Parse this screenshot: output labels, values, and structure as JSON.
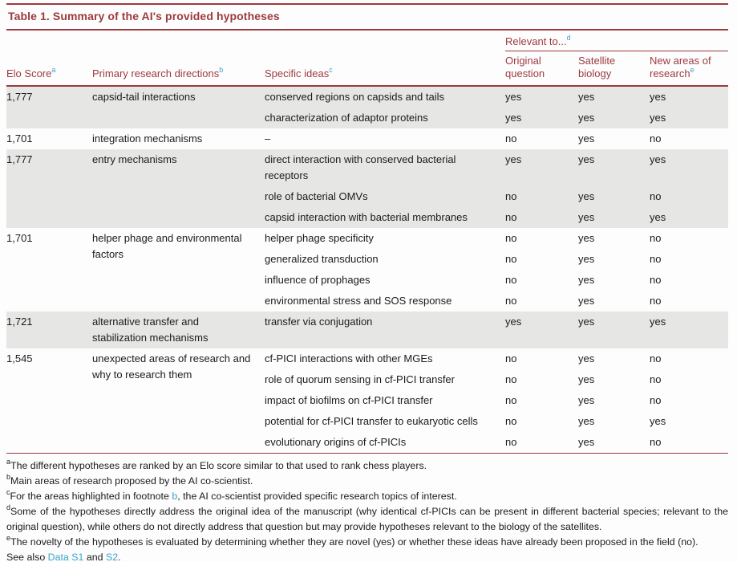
{
  "title": "Table 1. Summary of the AI's provided hypotheses",
  "colors": {
    "accent_maroon": "#9d3a3f",
    "link_blue": "#3aa2cc",
    "stripe_gray": "#e6e6e5",
    "text": "#1b1b1b"
  },
  "table": {
    "headers": {
      "elo": "Elo Score",
      "elo_sup": "a",
      "directions": "Primary research directions",
      "directions_sup": "b",
      "ideas": "Specific ideas",
      "ideas_sup": "c",
      "relevant": "Relevant to...",
      "relevant_sup": "d",
      "sub_original": "Original question",
      "sub_satellite": "Satellite biology",
      "sub_newareas": "New areas of research",
      "sub_newareas_sup": "e"
    },
    "groups": [
      {
        "elo": "1,777",
        "direction": "capsid-tail interactions",
        "striped": true,
        "ideas": [
          {
            "idea": "conserved regions on capsids and tails",
            "orig": "yes",
            "sat": "yes",
            "new": "yes"
          },
          {
            "idea": "characterization of adaptor proteins",
            "orig": "yes",
            "sat": "yes",
            "new": "yes"
          }
        ]
      },
      {
        "elo": "1,701",
        "direction": "integration mechanisms",
        "striped": false,
        "ideas": [
          {
            "idea": "–",
            "orig": "no",
            "sat": "yes",
            "new": "no"
          }
        ]
      },
      {
        "elo": "1,777",
        "direction": "entry mechanisms",
        "striped": true,
        "ideas": [
          {
            "idea": "direct interaction with conserved bacterial receptors",
            "orig": "yes",
            "sat": "yes",
            "new": "yes"
          },
          {
            "idea": "role of bacterial OMVs",
            "orig": "no",
            "sat": "yes",
            "new": "no"
          },
          {
            "idea": "capsid interaction with bacterial membranes",
            "orig": "no",
            "sat": "yes",
            "new": "yes"
          }
        ]
      },
      {
        "elo": "1,701",
        "direction": "helper phage and environmental factors",
        "striped": false,
        "ideas": [
          {
            "idea": "helper phage specificity",
            "orig": "no",
            "sat": "yes",
            "new": "no"
          },
          {
            "idea": "generalized transduction",
            "orig": "no",
            "sat": "yes",
            "new": "no"
          },
          {
            "idea": "influence of prophages",
            "orig": "no",
            "sat": "yes",
            "new": "no"
          },
          {
            "idea": "environmental stress and SOS response",
            "orig": "no",
            "sat": "yes",
            "new": "no"
          }
        ]
      },
      {
        "elo": "1,721",
        "direction": "alternative transfer and stabilization mechanisms",
        "striped": true,
        "ideas": [
          {
            "idea": "transfer via conjugation",
            "orig": "yes",
            "sat": "yes",
            "new": "yes"
          }
        ]
      },
      {
        "elo": "1,545",
        "direction": "unexpected areas of research and why to research them",
        "striped": false,
        "ideas": [
          {
            "idea": "cf-PICI interactions with other MGEs",
            "orig": "no",
            "sat": "yes",
            "new": "no"
          },
          {
            "idea": "role of quorum sensing in cf-PICI transfer",
            "orig": "no",
            "sat": "yes",
            "new": "no"
          },
          {
            "idea": "impact of biofilms on cf-PICI transfer",
            "orig": "no",
            "sat": "yes",
            "new": "no"
          },
          {
            "idea": "potential for cf-PICI transfer to eukaryotic cells",
            "orig": "no",
            "sat": "yes",
            "new": "yes"
          },
          {
            "idea": "evolutionary origins of cf-PICIs",
            "orig": "no",
            "sat": "yes",
            "new": "no"
          }
        ]
      }
    ]
  },
  "footnotes": {
    "a": {
      "sup": "a",
      "text": "The different hypotheses are ranked by an Elo score similar to that used to rank chess players."
    },
    "b": {
      "sup": "b",
      "text": "Main areas of research proposed by the AI co-scientist."
    },
    "c": {
      "sup": "c",
      "pre": "For the areas highlighted in footnote ",
      "link": "b",
      "post": ", the AI co-scientist provided specific research topics of interest."
    },
    "d": {
      "sup": "d",
      "text": "Some of the hypotheses directly address the original idea of the manuscript (why identical cf-PICIs can be present in different bacterial species; relevant to the original question), while others do not directly address that question but may provide hypotheses relevant to the biology of the satellites."
    },
    "e": {
      "sup": "e",
      "text": "The novelty of the hypotheses is evaluated by determining whether they are novel (yes) or whether these ideas have already been proposed in the field (no)."
    }
  },
  "see_also": {
    "prefix": "See also ",
    "link1": "Data S1",
    "middle": " and ",
    "link2": "S2",
    "suffix": "."
  }
}
